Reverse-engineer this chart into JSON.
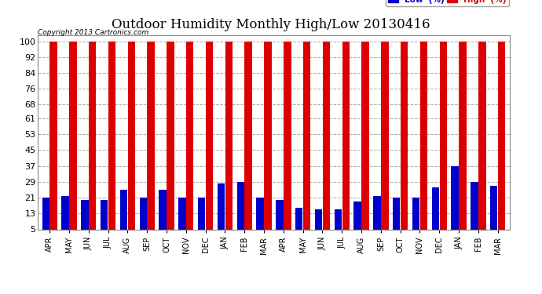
{
  "title": "Outdoor Humidity Monthly High/Low 20130416",
  "copyright": "Copyright 2013 Cartronics.com",
  "background_color": "#ffffff",
  "plot_bg_color": "#ffffff",
  "categories": [
    "APR",
    "MAY",
    "JUN",
    "JUL",
    "AUG",
    "SEP",
    "OCT",
    "NOV",
    "DEC",
    "JAN",
    "FEB",
    "MAR",
    "APR",
    "MAY",
    "JUN",
    "JUL",
    "AUG",
    "SEP",
    "OCT",
    "NOV",
    "DEC",
    "JAN",
    "FEB",
    "MAR"
  ],
  "high_values": [
    100,
    100,
    100,
    100,
    100,
    100,
    100,
    100,
    100,
    100,
    100,
    100,
    100,
    100,
    100,
    100,
    100,
    100,
    100,
    100,
    100,
    100,
    100,
    100
  ],
  "low_values": [
    21,
    22,
    20,
    20,
    25,
    21,
    25,
    21,
    21,
    28,
    29,
    21,
    20,
    16,
    15,
    15,
    19,
    22,
    21,
    21,
    26,
    37,
    29,
    27
  ],
  "high_color": "#dd0000",
  "low_color": "#0000cc",
  "yticks": [
    5,
    13,
    21,
    29,
    37,
    45,
    53,
    61,
    68,
    76,
    84,
    92,
    100
  ],
  "ylim": [
    5,
    103
  ],
  "grid_color": "#aaaaaa",
  "title_fontsize": 12,
  "tick_fontsize": 8,
  "legend_low_label": "Low  (%)",
  "legend_high_label": "High  (%)"
}
